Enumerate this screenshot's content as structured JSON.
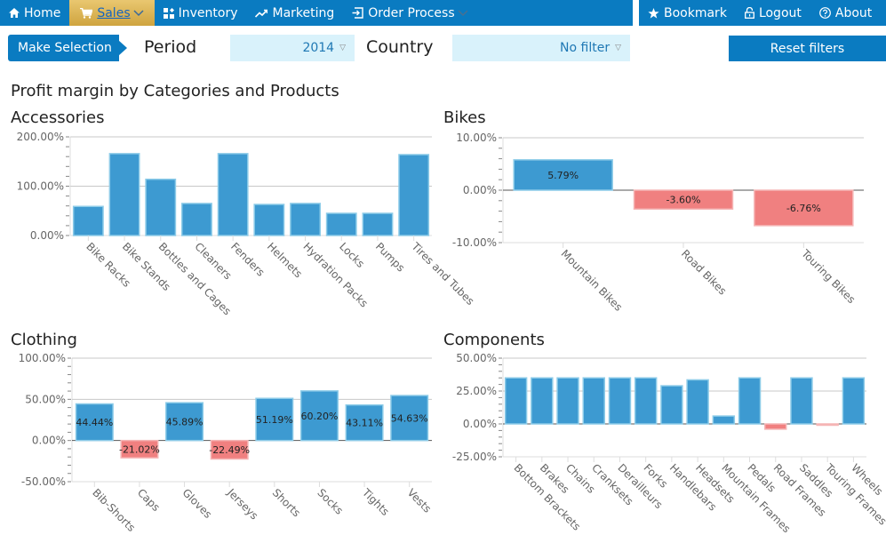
{
  "nav": {
    "left": [
      {
        "icon": "home-icon",
        "label": "Home",
        "active": false
      },
      {
        "icon": "cart-icon",
        "label": "Sales",
        "active": true,
        "dropdown": true
      },
      {
        "icon": "inventory-icon",
        "label": "Inventory",
        "active": false
      },
      {
        "icon": "trend-icon",
        "label": "Marketing",
        "active": false
      },
      {
        "icon": "login-icon",
        "label": "Order Process",
        "active": false,
        "dropdown": true
      }
    ],
    "right": [
      {
        "icon": "star-icon",
        "label": "Bookmark"
      },
      {
        "icon": "lock-icon",
        "label": "Logout"
      },
      {
        "icon": "help-circle-icon",
        "label": "About"
      }
    ]
  },
  "filters": {
    "make_selection": "Make Selection",
    "period_label": "Period",
    "period_value": "2014",
    "country_label": "Country",
    "country_value": "No filter",
    "reset_label": "Reset filters"
  },
  "page_title": "Profit margin by Categories and Products",
  "colors": {
    "positive": "#3d9ad1",
    "negative": "#f08080",
    "nav": "#0a7bc1",
    "nav_active": "#dcb354",
    "select_bg": "#d9f2fb"
  },
  "chart_data": [
    {
      "type": "bar",
      "title": "Accessories",
      "categories": [
        "Bike Racks",
        "Bike Stands",
        "Bottles and Cages",
        "Cleaners",
        "Fenders",
        "Helmets",
        "Hydration Packs",
        "Locks",
        "Pumps",
        "Tires and Tubes"
      ],
      "values": [
        59,
        166,
        114,
        65,
        166,
        63,
        65,
        45,
        45,
        164
      ],
      "ylim": [
        0,
        200
      ],
      "yticks": [
        "0.00%",
        "100.00%",
        "200.00%"
      ],
      "ytick_values": [
        0,
        100,
        200
      ],
      "show_labels": false,
      "xlabel": "",
      "ylabel": "",
      "grid": true
    },
    {
      "type": "bar",
      "title": "Bikes",
      "categories": [
        "Mountain Bikes",
        "Road Bikes",
        "Touring Bikes"
      ],
      "values": [
        5.79,
        -3.6,
        -6.76
      ],
      "value_labels": [
        "5.79%",
        "-3.60%",
        "-6.76%"
      ],
      "ylim": [
        -10,
        10
      ],
      "yticks": [
        "-10.00%",
        "0.00%",
        "10.00%"
      ],
      "ytick_values": [
        -10,
        0,
        10
      ],
      "show_labels": true,
      "xlabel": "",
      "ylabel": "",
      "grid": true
    },
    {
      "type": "bar",
      "title": "Clothing",
      "categories": [
        "Bib-Shorts",
        "Caps",
        "Gloves",
        "Jerseys",
        "Shorts",
        "Socks",
        "Tights",
        "Vests"
      ],
      "values": [
        44.44,
        -21.02,
        45.89,
        -22.49,
        51.19,
        60.2,
        43.11,
        54.63
      ],
      "value_labels": [
        "44.44%",
        "-21.02%",
        "45.89%",
        "-22.49%",
        "51.19%",
        "60.20%",
        "43.11%",
        "54.63%"
      ],
      "ylim": [
        -50,
        100
      ],
      "yticks": [
        "-50.00%",
        "0.00%",
        "50.00%",
        "100.00%"
      ],
      "ytick_values": [
        -50,
        0,
        50,
        100
      ],
      "show_labels": true,
      "xlabel": "",
      "ylabel": "",
      "grid": true
    },
    {
      "type": "bar",
      "title": "Components",
      "categories": [
        "Bottom Brackets",
        "Brakes",
        "Chains",
        "Cranksets",
        "Derailleurs",
        "Forks",
        "Handlebars",
        "Headsets",
        "Mountain Frames",
        "Pedals",
        "Road Frames",
        "Saddles",
        "Touring Frames",
        "Wheels"
      ],
      "values": [
        35,
        35,
        35,
        35,
        35,
        35,
        29,
        33.5,
        6,
        35,
        -4,
        35,
        -1,
        35
      ],
      "ylim": [
        -25,
        50
      ],
      "yticks": [
        "-25.00%",
        "0.00%",
        "25.00%",
        "50.00%"
      ],
      "ytick_values": [
        -25,
        0,
        25,
        50
      ],
      "show_labels": false,
      "xlabel": "",
      "ylabel": "",
      "grid": true
    }
  ]
}
